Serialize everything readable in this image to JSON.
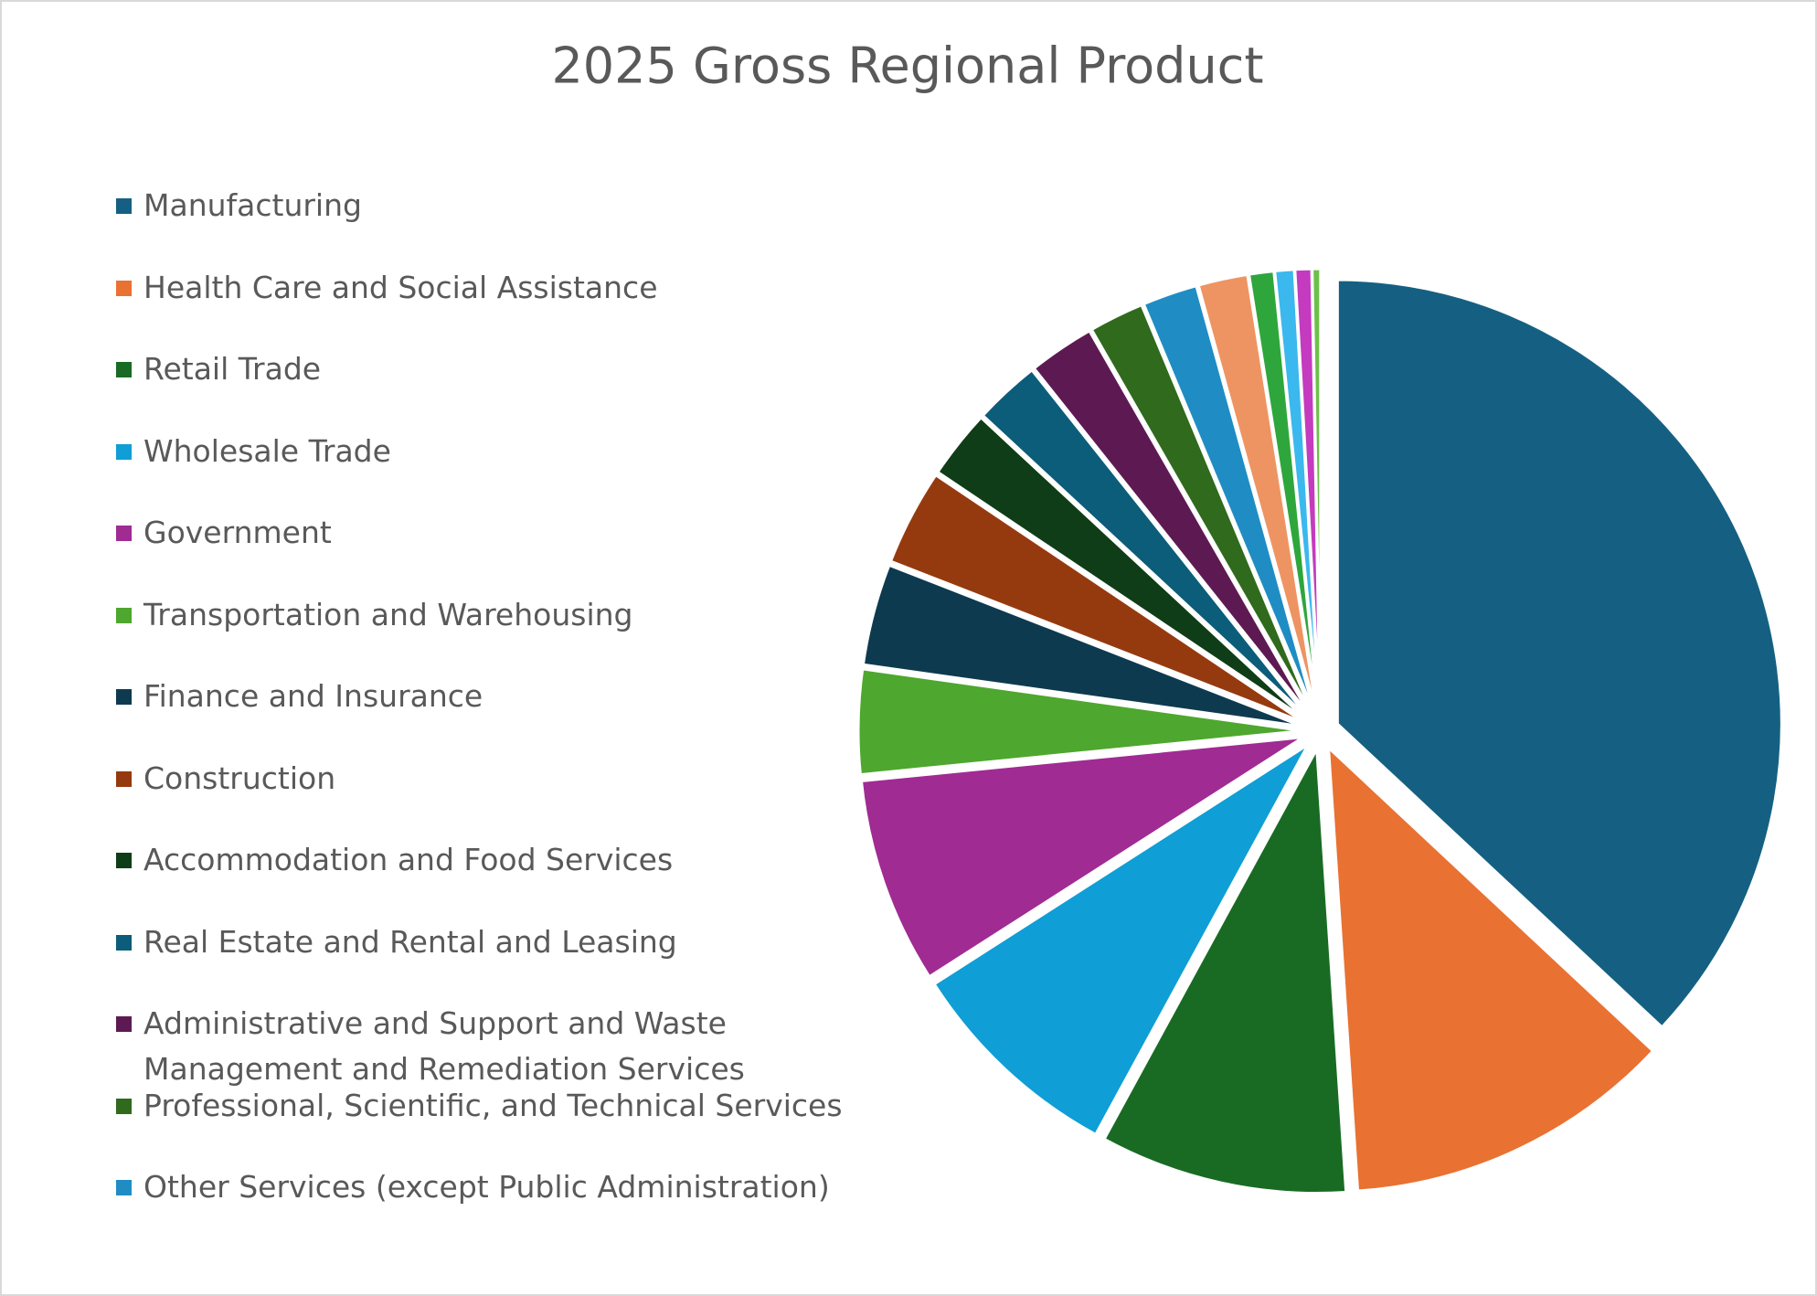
{
  "chart_data": {
    "type": "pie",
    "title": "2025 Gross Regional Product",
    "categories": [
      "Manufacturing",
      "Health Care and Social Assistance",
      "Retail Trade",
      "Wholesale Trade",
      "Government",
      "Transportation and Warehousing",
      "Finance and Insurance",
      "Construction",
      "Accommodation and Food Services",
      "Real Estate and Rental and Leasing",
      "Administrative and Support and Waste Management and Remediation Services",
      "Professional, Scientific, and Technical Services",
      "Other Services (except Public Administration)",
      null,
      null,
      null,
      null,
      null
    ],
    "values": [
      37,
      12,
      9,
      8,
      7.5,
      3.8,
      3.7,
      3.5,
      2.5,
      2.4,
      2.4,
      2.0,
      2.0,
      1.8,
      0.9,
      0.7,
      0.6,
      0.3
    ],
    "colors": [
      "#156082",
      "#e97132",
      "#196b24",
      "#0f9ed5",
      "#a02b93",
      "#4ea72e",
      "#0e3a4f",
      "#953a0f",
      "#0f3d17",
      "#0b5d7a",
      "#5d1a52",
      "#2f6a1d",
      "#1f8dc4",
      "#ee9462",
      "#2ea63c",
      "#3bb8ee",
      "#c43bbf",
      "#6cc04a"
    ]
  }
}
